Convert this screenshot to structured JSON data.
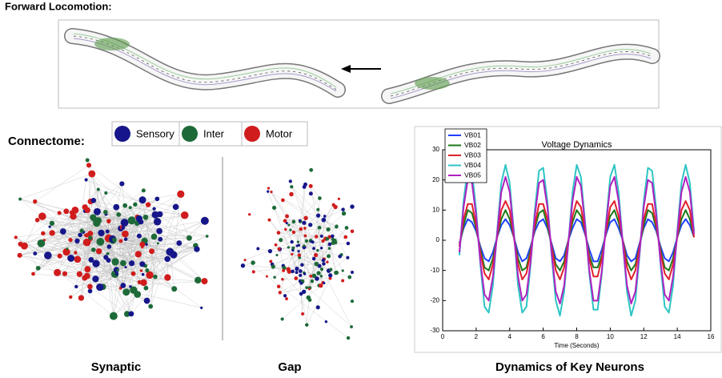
{
  "header": {
    "title": "Forward Locomotion:"
  },
  "connectome": {
    "title": "Connectome:",
    "legend": [
      "Sensory",
      "Inter",
      "Motor"
    ],
    "legend_colors": [
      "#16168a",
      "#1d6a38",
      "#d01c1c"
    ],
    "captions": [
      "Synaptic",
      "Gap"
    ]
  },
  "chart_data": {
    "type": "line",
    "title": "Voltage Dynamics",
    "x_label": "Time (Seconds)",
    "caption": "Dynamics of Key Neurons",
    "x": [
      1,
      1.25,
      1.5,
      1.75,
      2,
      2.25,
      2.5,
      2.75,
      3,
      3.25,
      3.5,
      3.75,
      4,
      4.25,
      4.5,
      4.75,
      5,
      5.25,
      5.5,
      5.75,
      6,
      6.25,
      6.5,
      6.75,
      7,
      7.25,
      7.5,
      7.75,
      8,
      8.25,
      8.5,
      8.75,
      9,
      9.25,
      9.5,
      9.75,
      10,
      10.25,
      10.5,
      10.75,
      11,
      11.25,
      11.5,
      11.75,
      12,
      12.25,
      12.5,
      12.75,
      13,
      13.25,
      13.5,
      13.75,
      14,
      14.25,
      14.5,
      14.75,
      15
    ],
    "xlim": [
      0,
      16
    ],
    "xticks": [
      0,
      2,
      4,
      6,
      8,
      10,
      12,
      14,
      16
    ],
    "ylim": [
      -30,
      30
    ],
    "yticks": [
      -30,
      -20,
      -10,
      0,
      10,
      20,
      30
    ],
    "legend": "upper left",
    "series": [
      {
        "name": "VB01",
        "color": "#1f3fff",
        "values": [
          -1,
          4,
          7,
          6,
          3,
          -2,
          -6,
          -7,
          -4,
          1,
          5,
          7,
          5,
          1,
          -4,
          -7,
          -6,
          -2,
          3,
          6,
          7,
          4,
          -1,
          -6,
          -7,
          -5,
          0,
          4,
          7,
          6,
          2,
          -3,
          -7,
          -7,
          -3,
          2,
          6,
          7,
          4,
          0,
          -5,
          -7,
          -6,
          -1,
          4,
          7,
          6,
          3,
          -2,
          -6,
          -7,
          -4,
          1,
          5,
          7,
          5,
          1
        ]
      },
      {
        "name": "VB02",
        "color": "#1a7a1a",
        "values": [
          -2,
          5,
          10,
          9,
          4,
          -3,
          -9,
          -10,
          -6,
          1,
          7,
          10,
          7,
          1,
          -6,
          -10,
          -9,
          -3,
          4,
          9,
          10,
          5,
          -2,
          -8,
          -10,
          -7,
          0,
          6,
          10,
          8,
          3,
          -5,
          -9,
          -9,
          -5,
          3,
          8,
          10,
          6,
          0,
          -7,
          -10,
          -8,
          -2,
          5,
          10,
          9,
          4,
          -3,
          -9,
          -10,
          -6,
          1,
          7,
          10,
          7,
          1
        ]
      },
      {
        "name": "VB03",
        "color": "#e0202a",
        "values": [
          -2,
          7,
          12,
          12,
          5,
          -4,
          -11,
          -13,
          -8,
          1,
          10,
          13,
          10,
          1,
          -8,
          -13,
          -11,
          -4,
          5,
          12,
          12,
          7,
          -2,
          -10,
          -13,
          -9,
          0,
          8,
          13,
          11,
          3,
          -6,
          -12,
          -12,
          -6,
          3,
          11,
          13,
          8,
          0,
          -9,
          -13,
          -10,
          -2,
          7,
          12,
          12,
          5,
          -4,
          -11,
          -13,
          -8,
          1,
          10,
          13,
          10,
          1
        ]
      },
      {
        "name": "VB04",
        "color": "#2ec4c4",
        "values": [
          -5,
          13,
          24,
          23,
          10,
          -8,
          -22,
          -24,
          -15,
          3,
          19,
          25,
          19,
          3,
          -15,
          -24,
          -22,
          -8,
          10,
          23,
          24,
          13,
          -5,
          -20,
          -25,
          -17,
          -1,
          16,
          25,
          21,
          6,
          -11,
          -23,
          -23,
          -11,
          6,
          21,
          25,
          16,
          -1,
          -17,
          -25,
          -20,
          -5,
          13,
          24,
          23,
          10,
          -8,
          -22,
          -24,
          -15,
          3,
          19,
          25,
          19,
          3
        ]
      },
      {
        "name": "VB05",
        "color": "#b020c0",
        "values": [
          -4,
          11,
          20,
          19,
          8,
          -7,
          -18,
          -20,
          -12,
          2,
          16,
          21,
          16,
          2,
          -12,
          -20,
          -18,
          -7,
          8,
          19,
          20,
          11,
          -4,
          -17,
          -21,
          -15,
          -1,
          13,
          21,
          18,
          5,
          -10,
          -20,
          -20,
          -10,
          5,
          18,
          21,
          13,
          -1,
          -15,
          -21,
          -17,
          -4,
          11,
          20,
          19,
          8,
          -7,
          -18,
          -20,
          -12,
          2,
          16,
          21,
          16,
          2
        ]
      }
    ]
  }
}
